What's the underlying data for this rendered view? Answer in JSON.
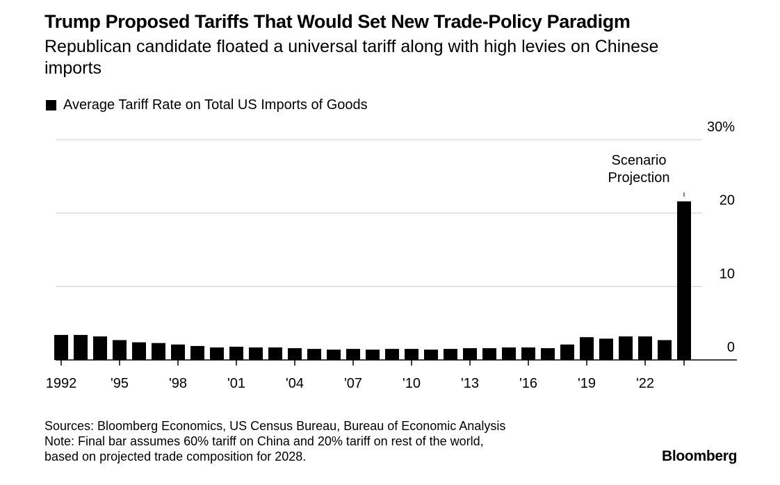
{
  "chart_data": {
    "type": "bar",
    "title": "Trump Proposed Tariffs That Would Set New Trade-Policy Paradigm",
    "subtitle": "Republican candidate floated a universal tariff along with high levies on Chinese imports",
    "legend": [
      "Average Tariff Rate on Total US Imports of Goods"
    ],
    "categories": [
      "1992",
      "1993",
      "1994",
      "1995",
      "1996",
      "1997",
      "1998",
      "1999",
      "2000",
      "2001",
      "2002",
      "2003",
      "2004",
      "2005",
      "2006",
      "2007",
      "2008",
      "2009",
      "2010",
      "2011",
      "2012",
      "2013",
      "2014",
      "2015",
      "2016",
      "2017",
      "2018",
      "2019",
      "2020",
      "2021",
      "2022",
      "2023",
      "Scenario Projection"
    ],
    "values": [
      3.4,
      3.4,
      3.2,
      2.7,
      2.4,
      2.3,
      2.1,
      1.9,
      1.7,
      1.8,
      1.7,
      1.7,
      1.6,
      1.5,
      1.4,
      1.5,
      1.4,
      1.5,
      1.5,
      1.4,
      1.5,
      1.6,
      1.6,
      1.7,
      1.7,
      1.6,
      2.1,
      3.1,
      2.9,
      3.2,
      3.2,
      2.7,
      21.6
    ],
    "x_tick_labels": [
      "1992",
      "'95",
      "'98",
      "'01",
      "'04",
      "'07",
      "'10",
      "'13",
      "'16",
      "'19",
      "'22"
    ],
    "y_tick_labels": [
      "0",
      "10",
      "20",
      "30%"
    ],
    "ylim": [
      0,
      30
    ],
    "annotation": [
      "Scenario",
      "Projection"
    ],
    "grid": true,
    "xlabel": "",
    "ylabel": ""
  },
  "footer": {
    "sources": "Sources: Bloomberg Economics, US Census Bureau, Bureau of Economic Analysis",
    "note1": "Note: Final bar assumes 60% tariff on China and 20% tariff on rest of the world,",
    "note2": "based on projected trade composition for 2028."
  },
  "logo": "Bloomberg"
}
